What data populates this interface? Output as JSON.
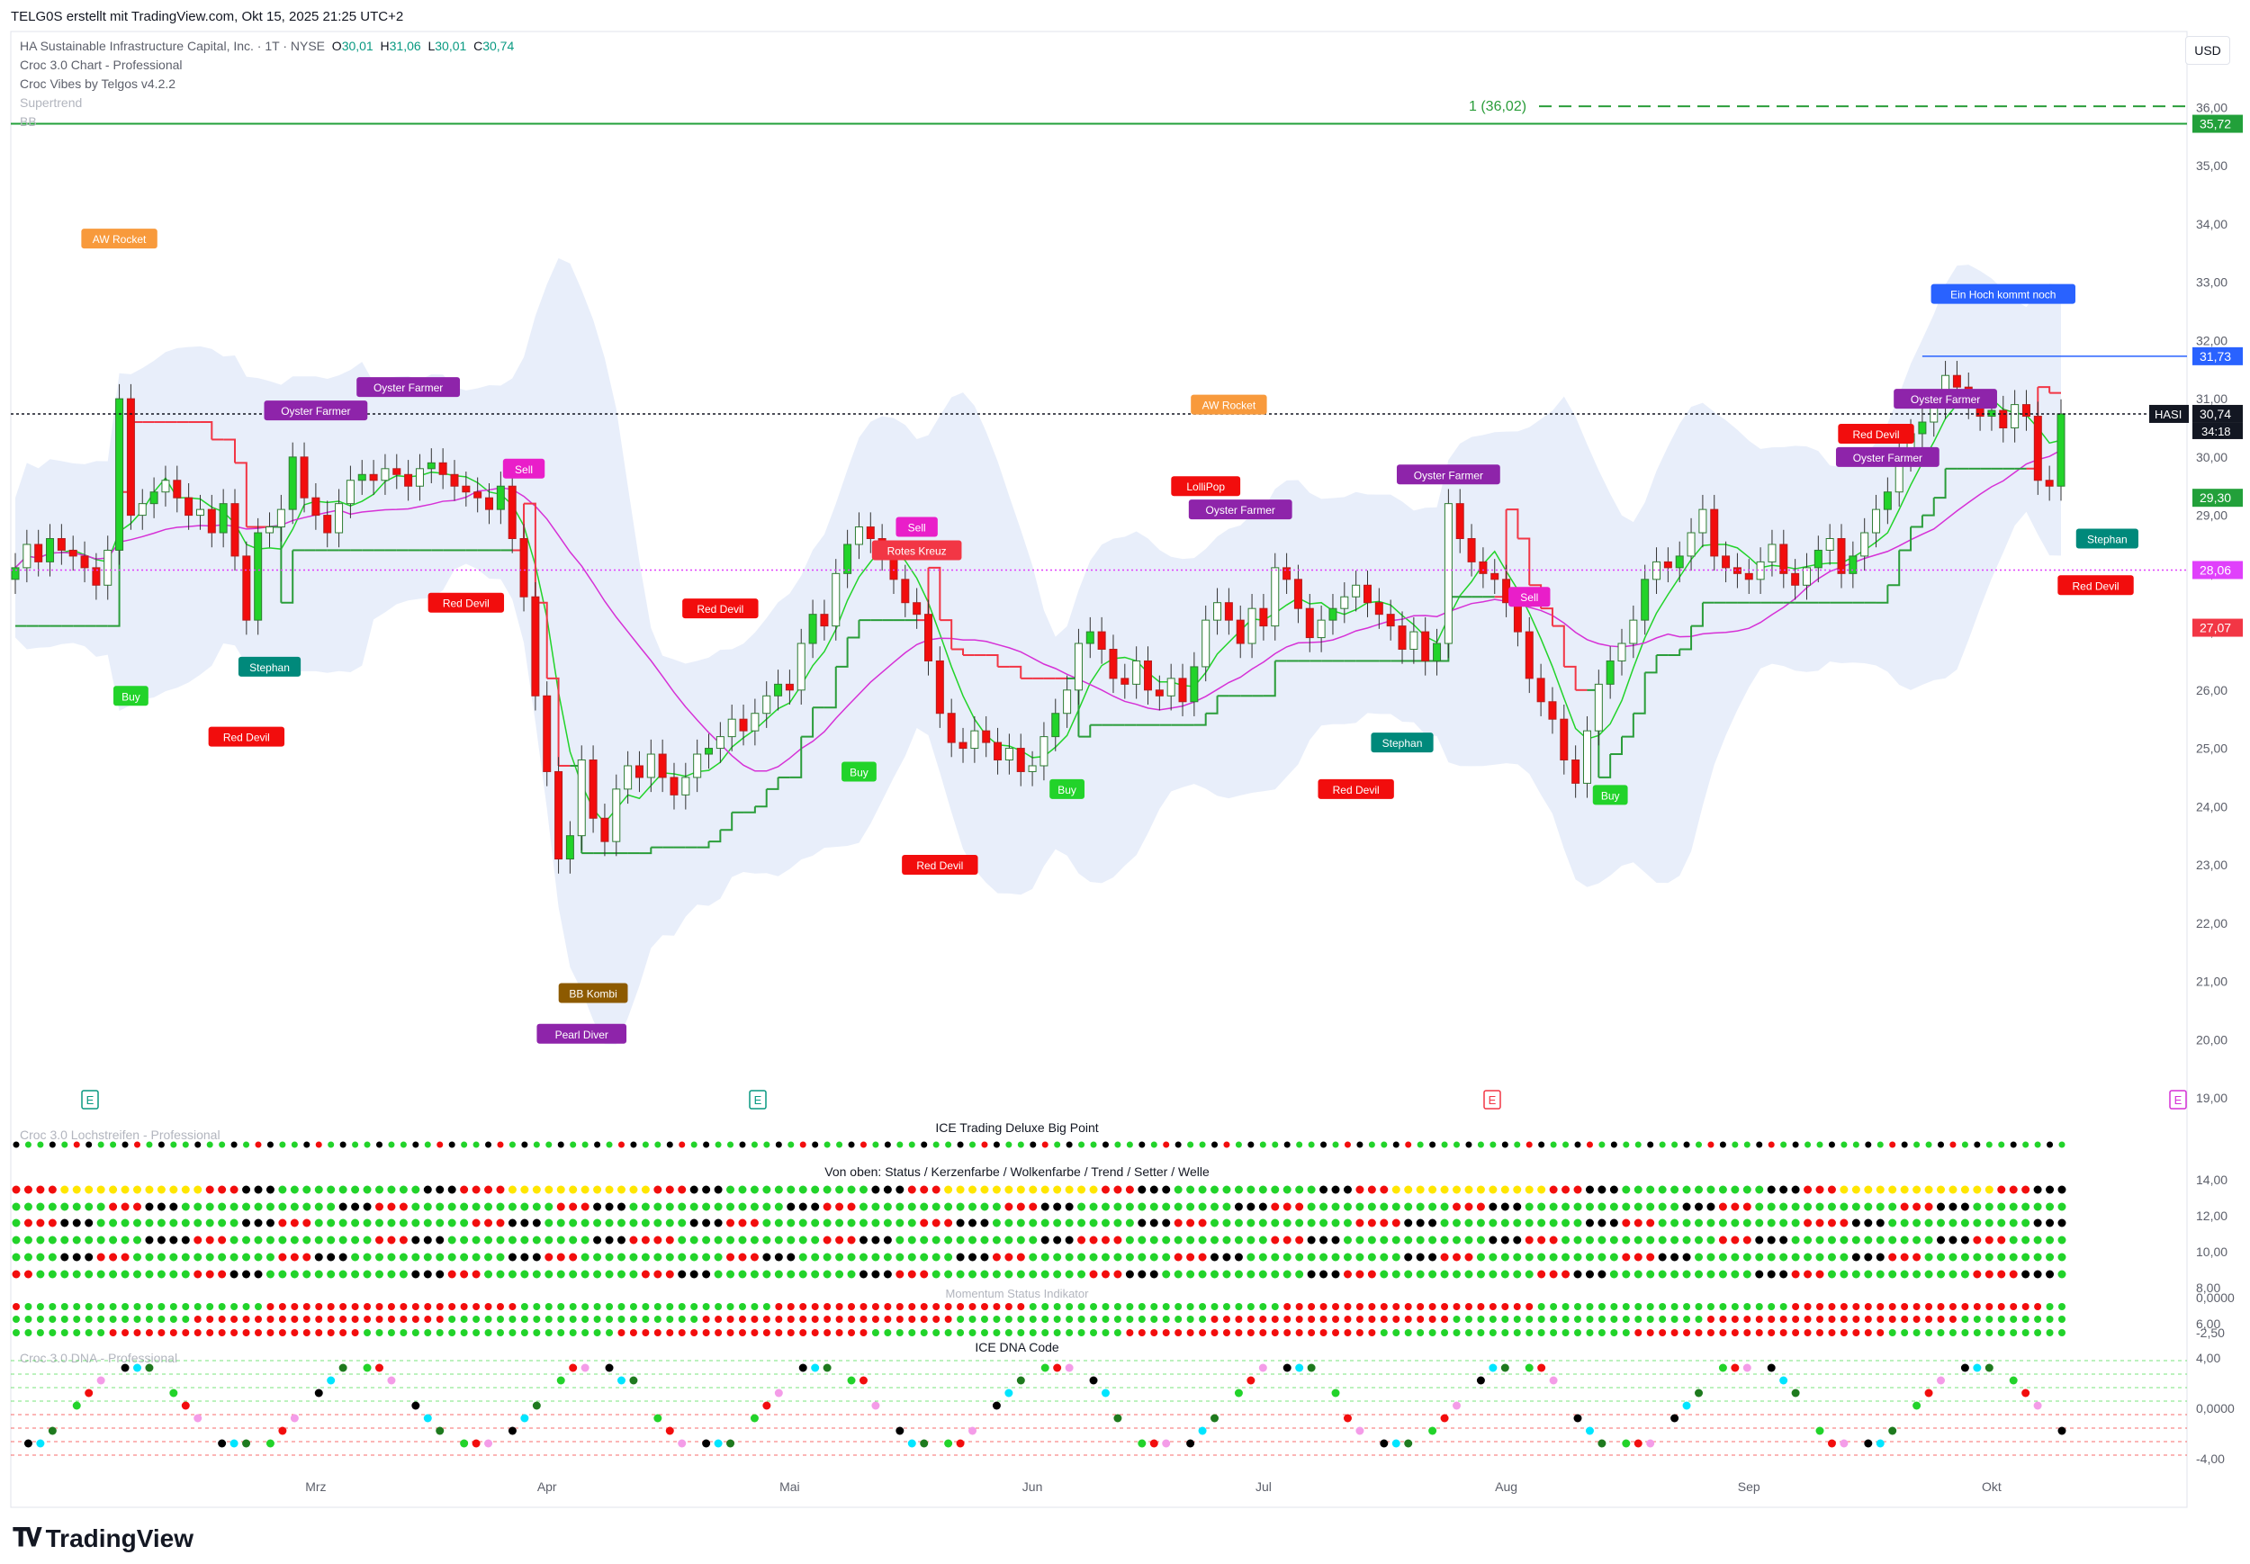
{
  "header": {
    "publisher": "TELG0S erstellt mit TradingView.com, Okt 15, 2025 21:25 UTC+2",
    "symbol_line": "HA Sustainable Infrastructure Capital, Inc. · 1T · NYSE",
    "o_label": "O",
    "o_value": "30,01",
    "h_label": "H",
    "h_value": "31,06",
    "l_label": "L",
    "l_value": "30,01",
    "c_label": "C",
    "c_value": "30,74",
    "indicators": [
      "Croc 3.0 Chart - Professional",
      "Croc Vibes by Telgos v4.2.2",
      "Supertrend",
      "BB"
    ],
    "currency": "USD"
  },
  "colors": {
    "up": "#22d32a",
    "down": "#f20d0d",
    "supertrend_up": "#2a9d3a",
    "supertrend_down": "#f23645",
    "bb_fill": "#e6ecfa",
    "ma_fast": "#22d32a",
    "ma_slow": "#d631d6",
    "blue_line": "#2962ff"
  },
  "chart_data": {
    "type": "candlestick",
    "title": "",
    "y_range": [
      19,
      36.3
    ],
    "y_ticks": [
      "36,00",
      "35,00",
      "34,00",
      "33,00",
      "32,00",
      "31,00",
      "30,00",
      "29,00",
      "28,00",
      "27,00",
      "26,00",
      "25,00",
      "24,00",
      "23,00",
      "22,00",
      "21,00",
      "20,00",
      "19,00"
    ],
    "x_labels": [
      {
        "label": "Mrz",
        "index": 26
      },
      {
        "label": "Apr",
        "index": 46
      },
      {
        "label": "Mai",
        "index": 67
      },
      {
        "label": "Jun",
        "index": 88
      },
      {
        "label": "Jul",
        "index": 108
      },
      {
        "label": "Aug",
        "index": 129
      },
      {
        "label": "Sep",
        "index": 150
      },
      {
        "label": "Okt",
        "index": 171
      }
    ],
    "closes": [
      28.1,
      28.5,
      28.2,
      28.6,
      28.4,
      28.3,
      28.1,
      27.8,
      28.4,
      31,
      29,
      29.2,
      29.4,
      29.6,
      29.3,
      29,
      29.1,
      28.7,
      29.2,
      28.3,
      27.2,
      28.7,
      28.8,
      29.1,
      30,
      29.3,
      29,
      28.7,
      29.2,
      29.6,
      29.7,
      29.6,
      29.8,
      29.7,
      29.5,
      29.8,
      29.9,
      29.7,
      29.5,
      29.4,
      29.3,
      29.1,
      29.5,
      28.6,
      27.6,
      25.9,
      24.6,
      23.1,
      23.5,
      24.8,
      23.8,
      23.4,
      24.3,
      24.7,
      24.5,
      24.9,
      24.5,
      24.2,
      24.5,
      24.9,
      25.0,
      25.2,
      25.5,
      25.3,
      25.6,
      25.9,
      26.1,
      26.0,
      26.8,
      27.3,
      27.1,
      28,
      28.5,
      28.8,
      28.6,
      28.3,
      27.9,
      27.5,
      27.3,
      26.5,
      25.6,
      25.1,
      25.0,
      25.3,
      25.1,
      24.8,
      25.0,
      24.6,
      24.7,
      25.2,
      25.6,
      26.0,
      26.8,
      27.0,
      26.7,
      26.2,
      26.1,
      26.5,
      26.0,
      25.9,
      26.2,
      25.8,
      26.4,
      27.2,
      27.5,
      27.2,
      26.8,
      27.4,
      27.1,
      28.1,
      27.9,
      27.4,
      26.9,
      27.2,
      27.4,
      27.6,
      27.8,
      27.5,
      27.3,
      27.1,
      26.7,
      27.0,
      26.5,
      26.8,
      29.2,
      28.6,
      28.2,
      28.0,
      27.9,
      27.5,
      27.0,
      26.2,
      25.8,
      25.5,
      24.8,
      24.4,
      25.3,
      26.1,
      26.5,
      26.8,
      27.2,
      27.9,
      28.2,
      28.1,
      28.3,
      28.7,
      29.1,
      28.3,
      28.1,
      28.0,
      27.9,
      28.2,
      28.5,
      28.0,
      27.8,
      28.1,
      28.4,
      28.6,
      28.0,
      28.3,
      28.7,
      29.1,
      29.4,
      30.0,
      30.4,
      30.6,
      30.9,
      31.4,
      31.2,
      30.9,
      30.7,
      30.8,
      30.5,
      30.9,
      30.7,
      29.6,
      29.5,
      30.74
    ],
    "series": [
      {
        "name": "Supertrend"
      },
      {
        "name": "BB"
      }
    ],
    "levels": [
      {
        "value": 35.72,
        "label": "35,72"
      },
      {
        "value": 31.73,
        "label": "31,73"
      },
      {
        "value": 30.74,
        "label": "30,74",
        "countdown": "34:18",
        "symbol": "HASI"
      },
      {
        "value": 29.3,
        "label": "29,30"
      },
      {
        "value": 28.06,
        "label": "28,06"
      },
      {
        "value": 27.07,
        "label": "27,07"
      }
    ],
    "target_line": {
      "label": "1 (36,02)",
      "value": 36.02
    },
    "signals": [
      {
        "text": "AW Rocket",
        "index": 9,
        "price": 33.75,
        "color": "#f89a3c"
      },
      {
        "text": "Oyster Farmer",
        "index": 34,
        "price": 31.2,
        "color": "#8e24aa"
      },
      {
        "text": "Oyster Farmer",
        "index": 26,
        "price": 30.8,
        "color": "#8e24aa"
      },
      {
        "text": "Buy",
        "index": 10,
        "price": 25.9,
        "color": "#22d32a"
      },
      {
        "text": "Stephan",
        "index": 22,
        "price": 26.4,
        "color": "#00897b"
      },
      {
        "text": "Red Devil",
        "index": 20,
        "price": 25.2,
        "color": "#f20d0d"
      },
      {
        "text": "Sell",
        "index": 44,
        "price": 29.8,
        "color": "#e91ec9"
      },
      {
        "text": "Red Devil",
        "index": 39,
        "price": 27.5,
        "color": "#f20d0d"
      },
      {
        "text": "BB Kombi",
        "index": 50,
        "price": 20.8,
        "color": "#8d5a00"
      },
      {
        "text": "Pearl Diver",
        "index": 49,
        "price": 20.1,
        "color": "#8e24aa"
      },
      {
        "text": "Red Devil",
        "index": 61,
        "price": 27.4,
        "color": "#f20d0d"
      },
      {
        "text": "Buy",
        "index": 73,
        "price": 24.6,
        "color": "#22d32a"
      },
      {
        "text": "Sell",
        "index": 78,
        "price": 28.8,
        "color": "#e91ec9"
      },
      {
        "text": "Rotes Kreuz",
        "index": 78,
        "price": 28.4,
        "color": "#f23645"
      },
      {
        "text": "Red Devil",
        "index": 80,
        "price": 23.0,
        "color": "#f20d0d"
      },
      {
        "text": "Buy",
        "index": 91,
        "price": 24.3,
        "color": "#22d32a"
      },
      {
        "text": "AW Rocket",
        "index": 105,
        "price": 30.9,
        "color": "#f89a3c"
      },
      {
        "text": "LolliPop",
        "index": 103,
        "price": 29.5,
        "color": "#f20d0d"
      },
      {
        "text": "Oyster Farmer",
        "index": 106,
        "price": 29.1,
        "color": "#8e24aa"
      },
      {
        "text": "Red Devil",
        "index": 116,
        "price": 24.3,
        "color": "#f20d0d"
      },
      {
        "text": "Stephan",
        "index": 120,
        "price": 25.1,
        "color": "#00897b"
      },
      {
        "text": "Oyster Farmer",
        "index": 124,
        "price": 29.7,
        "color": "#8e24aa"
      },
      {
        "text": "Sell",
        "index": 131,
        "price": 27.6,
        "color": "#e91ec9"
      },
      {
        "text": "Buy",
        "index": 138,
        "price": 24.2,
        "color": "#22d32a"
      },
      {
        "text": "Red Devil",
        "index": 161,
        "price": 30.4,
        "color": "#f20d0d"
      },
      {
        "text": "Oyster Farmer",
        "index": 162,
        "price": 30.0,
        "color": "#8e24aa"
      },
      {
        "text": "Oyster Farmer",
        "index": 167,
        "price": 31.0,
        "color": "#8e24aa"
      },
      {
        "text": "Ein Hoch kommt noch",
        "index": 172,
        "price": 32.8,
        "color": "#2962ff"
      },
      {
        "text": "Stephan",
        "index": 181,
        "price": 28.6,
        "color": "#00897b"
      },
      {
        "text": "Red Devil",
        "index": 180,
        "price": 27.8,
        "color": "#f20d0d"
      }
    ]
  },
  "panes": {
    "pane1_title": "ICE Trading Deluxe Big Point",
    "pane1_faded": "Croc 3.0 Lochstreifen - Professional",
    "pane2_title": "Von oben: Status / Kerzenfarbe / Wolkenfarbe / Trend / Setter / Welle",
    "pane2_ticks": [
      "14,00",
      "12,00",
      "10,00",
      "8,00",
      "6,00"
    ],
    "pane3_title": "Momentum Status Indikator",
    "pane3_ticks": [
      "0,0000",
      "-2,50"
    ],
    "pane4_title": "ICE DNA Code",
    "pane4_faded": "Croc 3.0 DNA - Professional",
    "pane4_ticks": [
      "4,00",
      "0,0000",
      "-4,00"
    ]
  },
  "footer": {
    "brand": "TradingView"
  }
}
